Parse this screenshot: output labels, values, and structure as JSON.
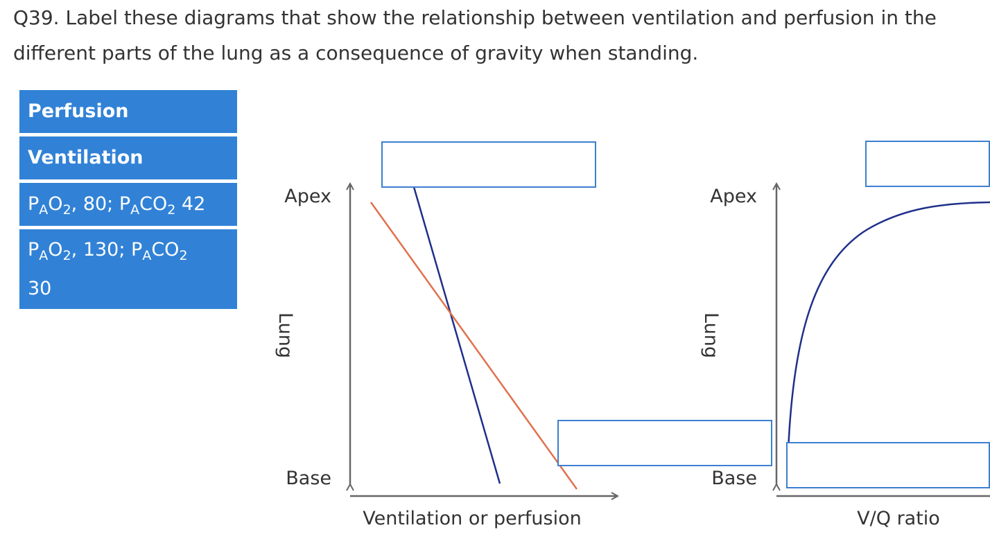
{
  "question": "Q39. Label these diagrams that show the relationship between ventilation and perfusion in the different parts of the lung as a consequence of gravity when standing.",
  "bank": {
    "perfusion": "Perfusion",
    "ventilation": "Ventilation",
    "tile3": {
      "p1": "P",
      "s1": "A",
      "p2": "O",
      "s2": "2",
      "p3": ", 80; P",
      "s3": "A",
      "p4": "CO",
      "s4": "2",
      "p5": " 42"
    },
    "tile4": {
      "p1": "P",
      "s1": "A",
      "p2": "O",
      "s2": "2",
      "p3": ", 130; P",
      "s3": "A",
      "p4": "CO",
      "s4": "2",
      "p5": "30"
    }
  },
  "diagram1": {
    "apex": "Apex",
    "base": "Base",
    "lung": "Lung",
    "xlabel": "Ventilation or perfusion",
    "colors": {
      "line_a": "#1f2f8a",
      "line_b": "#e0714e",
      "axis": "#666666"
    }
  },
  "diagram2": {
    "apex": "Apex",
    "base": "Base",
    "lung": "Lung",
    "xlabel": "V/Q ratio",
    "colors": {
      "curve": "#1f2f8a",
      "axis": "#666666"
    }
  },
  "dropzones": [
    "",
    "",
    "",
    ""
  ]
}
